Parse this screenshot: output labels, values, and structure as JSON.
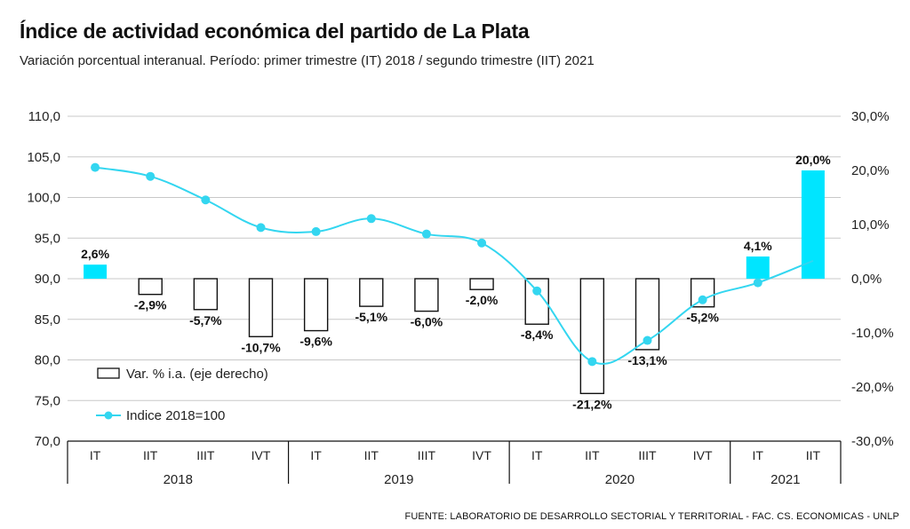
{
  "title": "Índice de actividad económica del partido de La Plata",
  "subtitle": "Variación porcentual interanual. Período: primer trimestre (IT) 2018 / segundo trimestre (IIT) 2021",
  "source": "FUENTE: LABORATORIO DE DESARROLLO SECTORIAL Y TERRITORIAL - FAC. CS. ECONOMICAS - UNLP",
  "colors": {
    "accent": "#00e5ff",
    "line": "#33d6f0",
    "bar_outline": "#111111",
    "grid": "#c8c8c8"
  },
  "chart_data": {
    "type": "bar+line",
    "categories": [
      "IT",
      "IIT",
      "IIIT",
      "IVT",
      "IT",
      "IIT",
      "IIIT",
      "IVT",
      "IT",
      "IIT",
      "IIIT",
      "IVT",
      "IT",
      "IIT"
    ],
    "years": [
      {
        "label": "2018",
        "span": 4
      },
      {
        "label": "2019",
        "span": 4
      },
      {
        "label": "2020",
        "span": 4
      },
      {
        "label": "2021",
        "span": 2
      }
    ],
    "left_axis": {
      "ylim": [
        70,
        110
      ],
      "ticks": [
        "70,0",
        "75,0",
        "80,0",
        "85,0",
        "90,0",
        "95,0",
        "100,0",
        "105,0",
        "110,0"
      ]
    },
    "right_axis": {
      "ylim": [
        -30,
        30
      ],
      "ticks": [
        "-30,0%",
        "-20,0%",
        "-10,0%",
        "0,0%",
        "10,0%",
        "20,0%",
        "30,0%"
      ]
    },
    "series": [
      {
        "name": "Var. % i.a. (eje derecho)",
        "kind": "bar",
        "axis": "right",
        "values": [
          2.6,
          -2.9,
          -5.7,
          -10.7,
          -9.6,
          -5.1,
          -6.0,
          -2.0,
          -8.4,
          -21.2,
          -13.1,
          -5.2,
          4.1,
          20.0
        ],
        "labels": [
          "2,6%",
          "-2,9%",
          "-5,7%",
          "-10,7%",
          "-9,6%",
          "-5,1%",
          "-6,0%",
          "-2,0%",
          "-8,4%",
          "-21,2%",
          "-13,1%",
          "-5,2%",
          "4,1%",
          "20,0%"
        ]
      },
      {
        "name": "Indice 2018=100",
        "kind": "line",
        "axis": "left",
        "values": [
          103.7,
          102.6,
          99.7,
          96.3,
          95.8,
          97.4,
          95.5,
          94.4,
          88.5,
          79.8,
          82.4,
          87.4,
          89.5,
          92.2
        ]
      }
    ],
    "legend_position": "bottom-left",
    "grid": true
  }
}
